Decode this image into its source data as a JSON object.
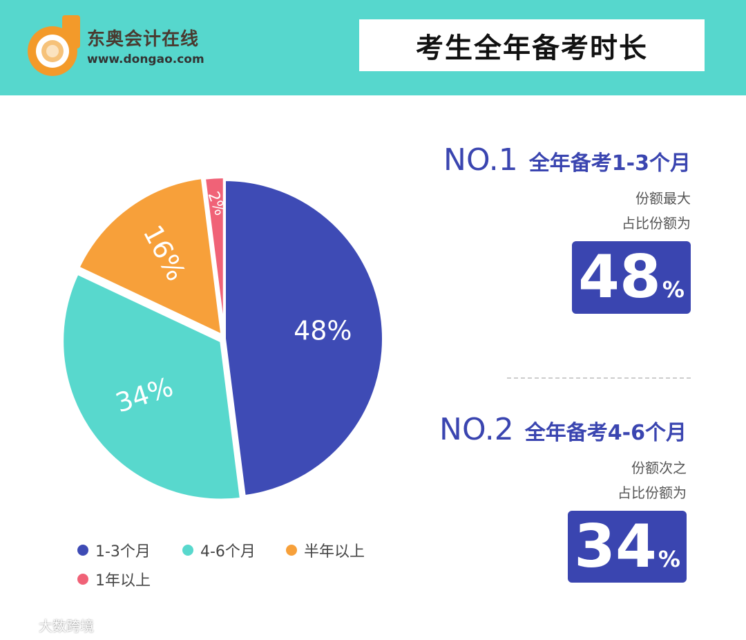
{
  "header": {
    "brand_name": "东奥会计在线",
    "brand_url": "www.dongao.com",
    "title": "考生全年备考时长"
  },
  "chart_data": {
    "type": "pie",
    "categories": [
      "1-3个月",
      "4-6个月",
      "半年以上",
      "1年以上"
    ],
    "values": [
      48,
      34,
      16,
      2
    ],
    "labels": [
      "48%",
      "34%",
      "16%",
      "2%"
    ],
    "colors": [
      "#3e4bb5",
      "#58d8cd",
      "#f7a03a",
      "#f06277"
    ],
    "legend_position": "bottom"
  },
  "ranks": [
    {
      "no": "NO.1",
      "title": "全年备考1-3个月",
      "desc1": "份额最大",
      "desc2": "占比份额为",
      "value": "48",
      "unit": "%"
    },
    {
      "no": "NO.2",
      "title": "全年备考4-6个月",
      "desc1": "份额次之",
      "desc2": "占比份额为",
      "value": "34",
      "unit": "%"
    }
  ],
  "watermark": {
    "text": "大数跨境"
  }
}
